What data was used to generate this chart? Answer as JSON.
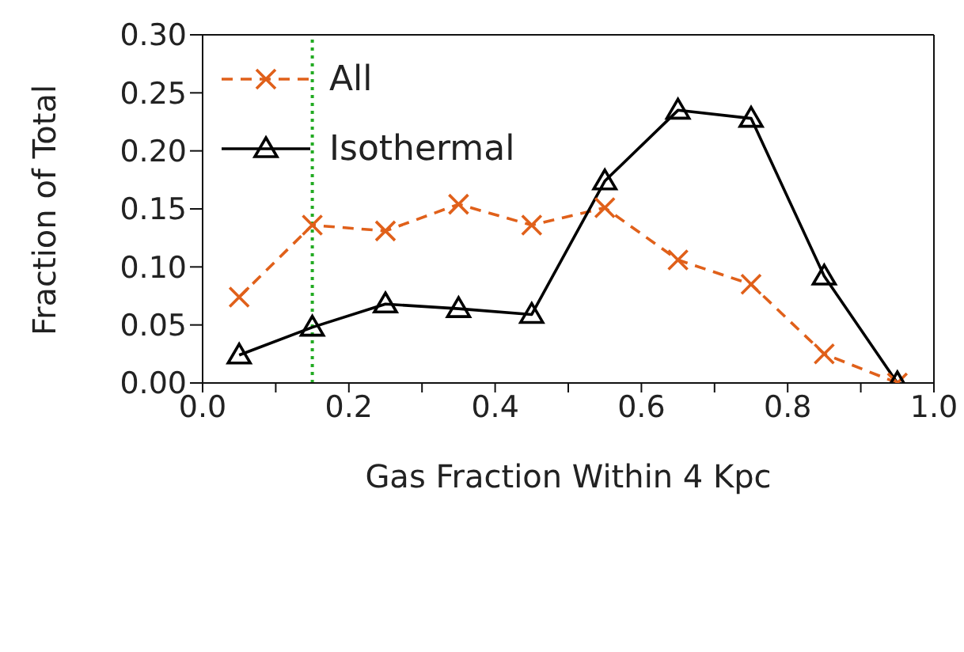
{
  "chart_data": {
    "type": "line",
    "xlabel": "Gas Fraction Within 4 Kpc",
    "ylabel": "Fraction of Total",
    "x": [
      0.05,
      0.15,
      0.25,
      0.35,
      0.45,
      0.55,
      0.65,
      0.75,
      0.85,
      0.95
    ],
    "series": [
      {
        "name": "All",
        "color": "#e0601a",
        "marker": "cross",
        "line_style": "dashed",
        "values": [
          0.074,
          0.136,
          0.131,
          0.154,
          0.136,
          0.151,
          0.106,
          0.085,
          0.025,
          0.0
        ]
      },
      {
        "name": "Isothermal",
        "color": "#000000",
        "marker": "triangle",
        "line_style": "solid",
        "values": [
          0.024,
          0.048,
          0.068,
          0.064,
          0.059,
          0.174,
          0.235,
          0.228,
          0.092,
          0.0
        ]
      }
    ],
    "xlim": [
      0,
      1
    ],
    "xticks": [
      {
        "value": 0,
        "label": "0.0"
      },
      {
        "value": 0.1,
        "label": null
      },
      0.2,
      {
        "value": 0.3,
        "label": null
      },
      0.4,
      {
        "value": 0.5,
        "label": null
      },
      0.6,
      {
        "value": 0.7,
        "label": null
      },
      0.8,
      {
        "value": 0.9,
        "label": null
      },
      {
        "value": 1,
        "label": "1.0"
      }
    ],
    "ylim": [
      0,
      0.3
    ],
    "yticks": [
      {
        "value": 0,
        "label": "0.00"
      },
      {
        "value": 0.05,
        "label": "0.05"
      },
      {
        "value": 0.1,
        "label": "0.10"
      },
      {
        "value": 0.15,
        "label": "0.15"
      },
      {
        "value": 0.2,
        "label": "0.20"
      },
      {
        "value": 0.25,
        "label": "0.25"
      },
      {
        "value": 0.3,
        "label": "0.30"
      }
    ],
    "ref_lines": [
      {
        "axis": "x",
        "value": 0.15,
        "color": "#22aa22",
        "line_style": "dotted"
      }
    ],
    "legend": "top left",
    "grid": false
  }
}
